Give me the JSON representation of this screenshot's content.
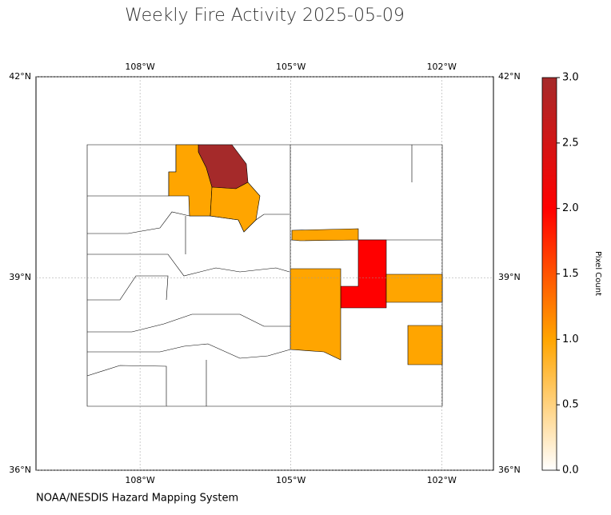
{
  "chart_data": {
    "type": "choropleth",
    "title": "Weekly Fire Activity 2025-05-09",
    "source": "NOAA/NESDIS Hazard Mapping System",
    "colorbar_label": "Pixel Count",
    "xlim": [
      -110.07,
      -100.97
    ],
    "ylim": [
      36,
      42
    ],
    "xticks": [
      {
        "value": -108,
        "label": "108°W"
      },
      {
        "value": -105,
        "label": "105°W"
      },
      {
        "value": -102,
        "label": "102°W"
      }
    ],
    "yticks": [
      {
        "value": 36,
        "label": "36°N"
      },
      {
        "value": 39,
        "label": "39°N"
      },
      {
        "value": 42,
        "label": "42°N"
      }
    ],
    "grid": true,
    "colorbar_lim": [
      0,
      3
    ],
    "colorbar_ticks": [
      {
        "value": 0,
        "label": "0.0"
      },
      {
        "value": 0.5,
        "label": "0.5"
      },
      {
        "value": 1,
        "label": "1.0"
      },
      {
        "value": 1.5,
        "label": "1.5"
      },
      {
        "value": 2,
        "label": "2.0"
      },
      {
        "value": 2.5,
        "label": "2.5"
      },
      {
        "value": 3,
        "label": "3.0"
      }
    ],
    "colormap": [
      "#ffffff",
      "#ffa500",
      "#ff0000",
      "#a52a2a"
    ],
    "regions": [
      {
        "value": 3
      },
      {
        "value": 1
      },
      {
        "value": 1
      },
      {
        "value": 1
      },
      {
        "value": 2
      },
      {
        "value": 1
      },
      {
        "value": 1
      },
      {
        "value": 1
      }
    ]
  }
}
